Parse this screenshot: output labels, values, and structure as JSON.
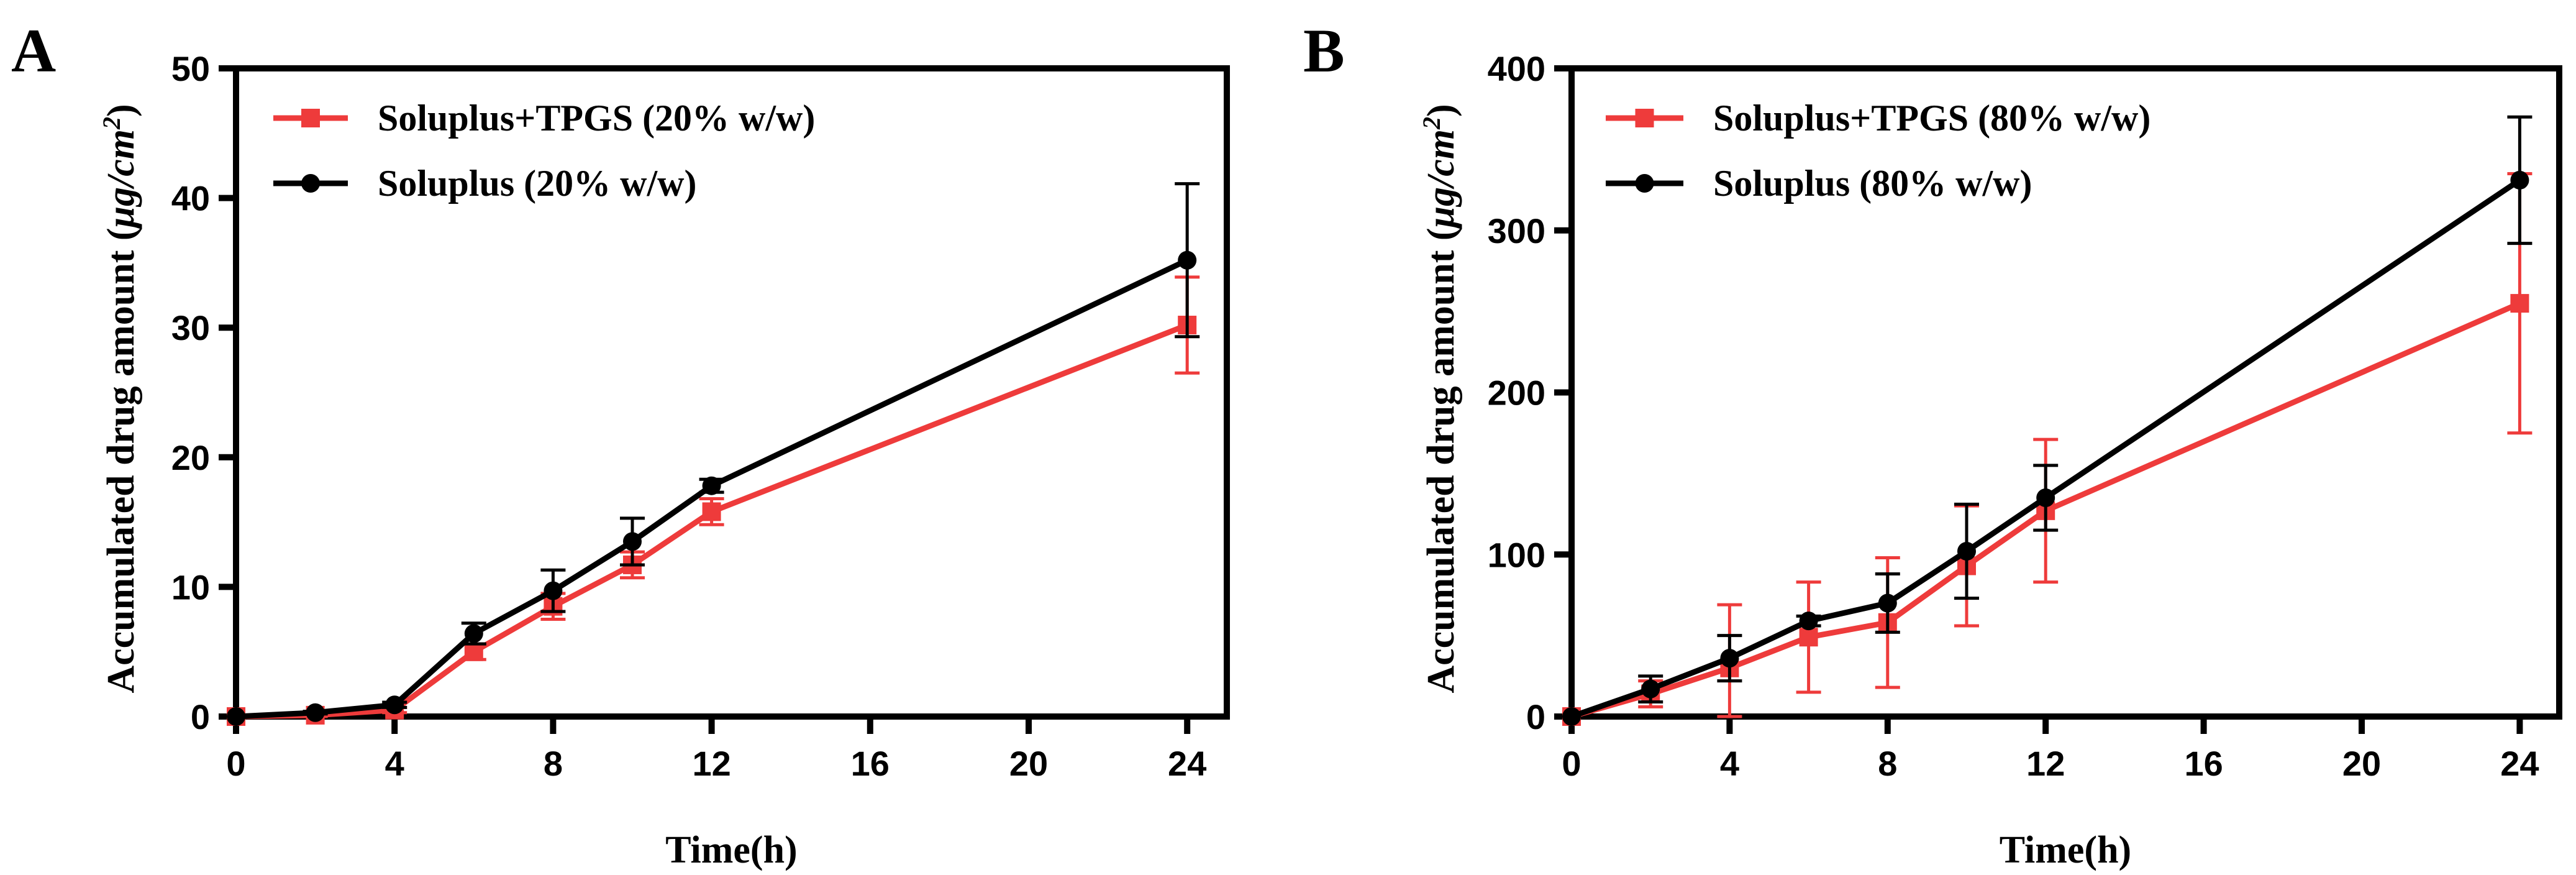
{
  "chart_data": [
    {
      "type": "line",
      "panel_label": "A",
      "title": "",
      "xlabel": "Time(h)",
      "ylabel": "Accumulated drug amount",
      "ylabel_unit": "μg/cm",
      "ylabel_unit_exp": "2",
      "xlim": [
        0,
        25
      ],
      "ylim": [
        0,
        50
      ],
      "xticks": [
        0,
        4,
        8,
        12,
        16,
        20,
        24
      ],
      "xtick_labels": [
        "0",
        "4",
        "8",
        "12",
        "16",
        "20",
        "24"
      ],
      "yticks": [
        0,
        10,
        20,
        30,
        40,
        50
      ],
      "ytick_labels": [
        "0",
        "10",
        "20",
        "30",
        "40",
        "50"
      ],
      "legend_position": "top-left",
      "series": [
        {
          "name": "Soluplus+TPGS (20% w/w)",
          "color": "#ee3b3b",
          "marker": "square",
          "x": [
            0,
            2,
            4,
            6,
            8,
            10,
            12,
            24
          ],
          "values": [
            0,
            0.1,
            0.5,
            5.0,
            8.5,
            11.7,
            15.8,
            30.2
          ],
          "errors": [
            0,
            0.1,
            0.2,
            0.6,
            1.0,
            1.0,
            1.0,
            3.7
          ]
        },
        {
          "name": "Soluplus (20% w/w)",
          "color": "#000000",
          "marker": "circle",
          "x": [
            0,
            2,
            4,
            6,
            8,
            10,
            12,
            24
          ],
          "values": [
            0,
            0.3,
            0.9,
            6.4,
            9.7,
            13.5,
            17.8,
            35.2
          ],
          "errors": [
            0,
            0.1,
            0.2,
            0.8,
            1.6,
            1.8,
            0.5,
            5.9
          ]
        }
      ]
    },
    {
      "type": "line",
      "panel_label": "B",
      "title": "",
      "xlabel": "Time(h)",
      "ylabel": "Accumulated drug amount",
      "ylabel_unit": "μg/cm",
      "ylabel_unit_exp": "2",
      "xlim": [
        0,
        25
      ],
      "ylim": [
        0,
        400
      ],
      "xticks": [
        0,
        4,
        8,
        12,
        16,
        20,
        24
      ],
      "xtick_labels": [
        "0",
        "4",
        "8",
        "12",
        "16",
        "20",
        "24"
      ],
      "yticks": [
        0,
        100,
        200,
        300,
        400
      ],
      "ytick_labels": [
        "0",
        "100",
        "200",
        "300",
        "400"
      ],
      "legend_position": "top-left",
      "series": [
        {
          "name": "Soluplus+TPGS (80% w/w)",
          "color": "#ee3b3b",
          "marker": "square",
          "x": [
            0,
            2,
            4,
            6,
            8,
            10,
            12,
            24
          ],
          "values": [
            0,
            14,
            30,
            49,
            58,
            93,
            127,
            255
          ],
          "errors": [
            0,
            8,
            39,
            34,
            40,
            37,
            44,
            80
          ]
        },
        {
          "name": "Soluplus (80% w/w)",
          "color": "#000000",
          "marker": "circle",
          "x": [
            0,
            2,
            4,
            6,
            8,
            10,
            12,
            24
          ],
          "values": [
            0,
            17,
            36,
            59,
            70,
            102,
            135,
            331
          ],
          "errors": [
            0,
            8,
            14,
            3,
            18,
            29,
            20,
            39
          ]
        }
      ]
    }
  ]
}
